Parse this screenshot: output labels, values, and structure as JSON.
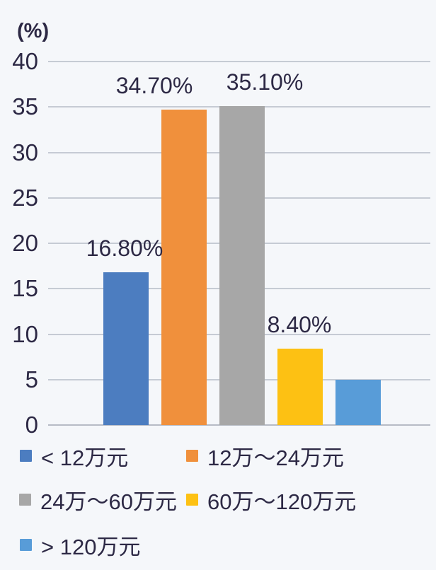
{
  "chart_data": {
    "type": "bar",
    "title": "",
    "xlabel": "",
    "ylabel": "(%)",
    "ylim": [
      0,
      40
    ],
    "yticks": [
      0,
      5,
      10,
      15,
      20,
      25,
      30,
      35,
      40
    ],
    "grid": true,
    "legend_position": "bottom",
    "series": [
      {
        "name": "< 12万元",
        "value": 16.8,
        "label": "16.80%",
        "color": "#4c7dc0"
      },
      {
        "name": "12万～24万元",
        "value": 34.7,
        "label": "34.70%",
        "color": "#f0903c"
      },
      {
        "name": "24万～60万元",
        "value": 35.1,
        "label": "35.10%",
        "color": "#a7a7a7"
      },
      {
        "name": "60万～120万元",
        "value": 8.4,
        "label": "8.40%",
        "color": "#fdc113"
      },
      {
        "name": "> 120万元",
        "value": 5.0,
        "label": null,
        "color": "#589cd8"
      }
    ],
    "colors": {
      "text": "#2d2945",
      "gridline": "#c6cbd4",
      "background": "#f5f7fa"
    }
  }
}
